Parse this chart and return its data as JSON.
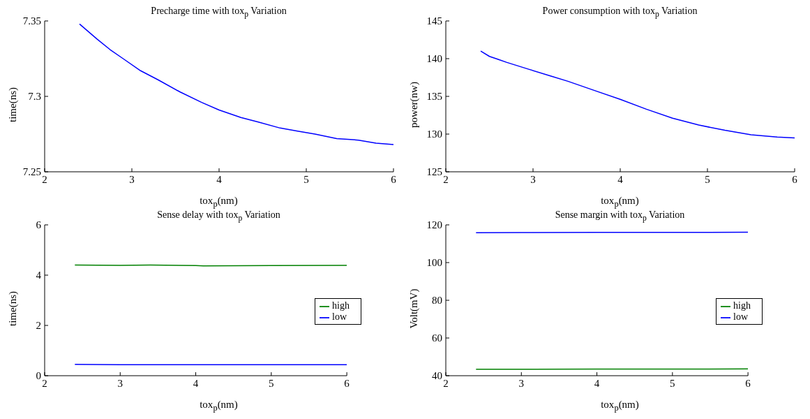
{
  "chart_data": [
    {
      "type": "line",
      "title": "Precharge time with tox$_{p}$ Variation",
      "xlabel": "tox$_{p}$(nm)",
      "ylabel": "time(ns)",
      "xlim": [
        2,
        6
      ],
      "xticks": [
        2,
        3,
        4,
        5,
        6
      ],
      "ylim": [
        7.25,
        7.35
      ],
      "yticks": [
        7.25,
        7.3,
        7.35
      ],
      "grid": false,
      "legend": false,
      "series": [
        {
          "color": "#0000ff",
          "x": [
            2.4,
            2.5,
            2.6,
            2.75,
            2.9,
            3.1,
            3.3,
            3.55,
            3.8,
            4.0,
            4.25,
            4.45,
            4.7,
            4.9,
            5.1,
            5.35,
            5.6,
            5.8,
            6.0
          ],
          "values": [
            7.348,
            7.343,
            7.338,
            7.331,
            7.325,
            7.317,
            7.311,
            7.303,
            7.296,
            7.291,
            7.286,
            7.283,
            7.279,
            7.277,
            7.275,
            7.272,
            7.271,
            7.269,
            7.268
          ]
        }
      ]
    },
    {
      "type": "line",
      "title": "Power consumption with tox$_{p}$ Variation",
      "xlabel": "tox$_{p}$(nm)",
      "ylabel": "power(nw)",
      "xlim": [
        2,
        6
      ],
      "xticks": [
        2,
        3,
        4,
        5,
        6
      ],
      "ylim": [
        125,
        145
      ],
      "yticks": [
        125,
        130,
        135,
        140,
        145
      ],
      "grid": false,
      "legend": false,
      "series": [
        {
          "color": "#0000ff",
          "x": [
            2.4,
            2.5,
            2.6,
            2.7,
            2.95,
            3.2,
            3.4,
            3.7,
            4.0,
            4.3,
            4.6,
            4.9,
            5.2,
            5.5,
            5.8,
            6.0
          ],
          "values": [
            141,
            140.3,
            139.9,
            139.5,
            138.6,
            137.7,
            137,
            135.8,
            134.6,
            133.3,
            132.1,
            131.2,
            130.5,
            129.9,
            129.6,
            129.5
          ]
        }
      ]
    },
    {
      "type": "line",
      "title": "Sense delay with tox$_{p}$ Variation",
      "xlabel": "tox$_{p}$(nm)",
      "ylabel": "time(ns)",
      "xlim": [
        2,
        6
      ],
      "xticks": [
        2,
        3,
        4,
        5,
        6
      ],
      "ylim": [
        0,
        6
      ],
      "yticks": [
        0,
        2,
        4,
        6
      ],
      "grid": false,
      "legend": "right",
      "series": [
        {
          "name": "low",
          "color": "#0000ff",
          "x": [
            2.4,
            3,
            4,
            5,
            6
          ],
          "values": [
            0.45,
            0.44,
            0.44,
            0.44,
            0.44
          ]
        },
        {
          "name": "high",
          "color": "#008000",
          "x": [
            2.4,
            3,
            3.4,
            4,
            4.1,
            5,
            6
          ],
          "values": [
            4.4,
            4.39,
            4.4,
            4.38,
            4.37,
            4.38,
            4.39
          ]
        }
      ]
    },
    {
      "type": "line",
      "title": "Sense margin with tox$_{p}$ Variation",
      "xlabel": "tox$_{p}$(nm)",
      "ylabel": "Volt(mV)",
      "xlim": [
        2,
        6
      ],
      "xticks": [
        2,
        3,
        4,
        5,
        6
      ],
      "ylim": [
        40,
        120
      ],
      "yticks": [
        40,
        60,
        80,
        100,
        120
      ],
      "grid": false,
      "legend": "right",
      "series": [
        {
          "name": "low",
          "color": "#0000ff",
          "x": [
            2.4,
            3,
            4,
            5,
            6
          ],
          "values": [
            115.8,
            115.9,
            116,
            116,
            116.1
          ]
        },
        {
          "name": "high",
          "color": "#008000",
          "x": [
            2.4,
            3,
            4,
            5,
            6
          ],
          "values": [
            43.4,
            43.4,
            43.5,
            43.5,
            43.6
          ]
        }
      ]
    }
  ]
}
